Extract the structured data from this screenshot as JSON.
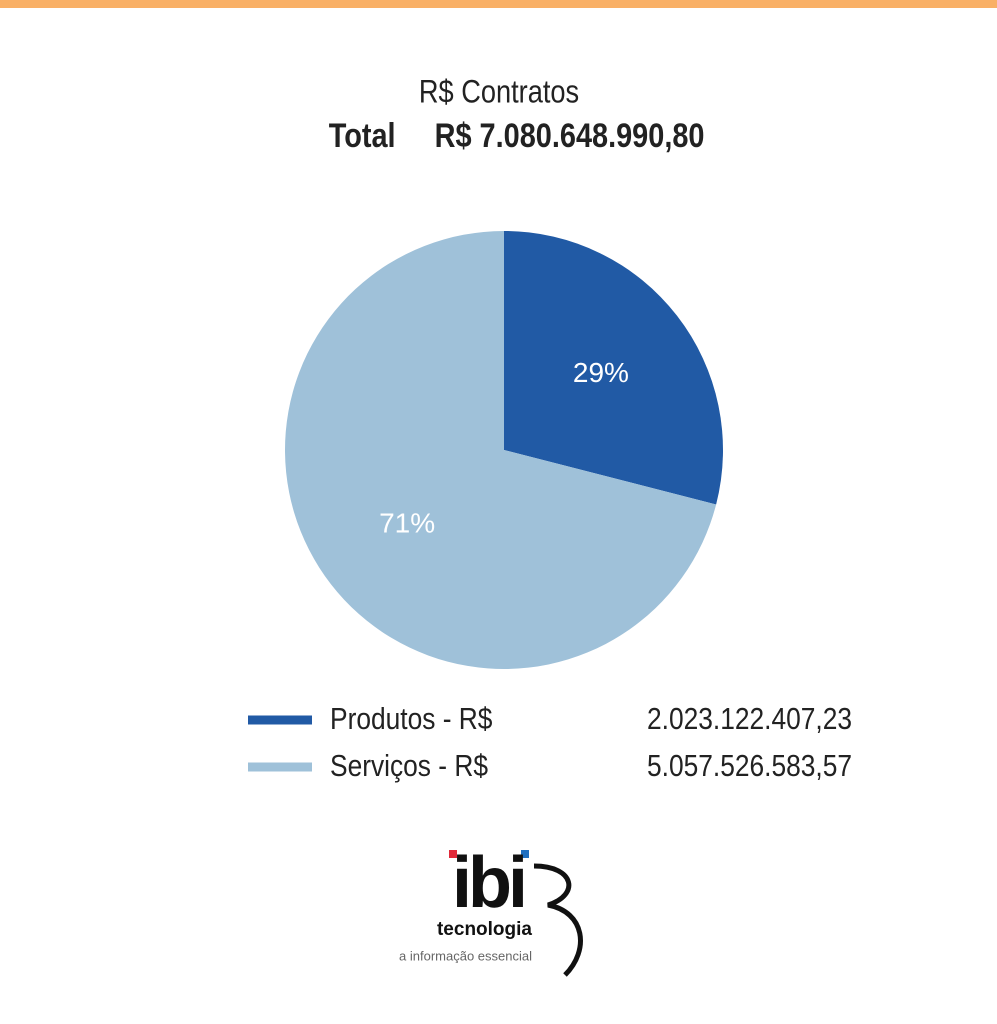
{
  "chart_data": {
    "type": "pie",
    "title": "R$ Contratos",
    "total_label": "Total",
    "total": "R$ 7.080.648.990,80",
    "categories": [
      "Produtos - R$",
      "Serviços - R$"
    ],
    "amounts": [
      "2.023.122.407,23",
      "5.057.526.583,57"
    ],
    "values": [
      29,
      71
    ],
    "value_labels": [
      "29%",
      "71%"
    ],
    "colors": [
      "#215aa5",
      "#9fc1d9"
    ]
  },
  "logo": {
    "name": "ibi",
    "line1": "tecnologia",
    "line2": "a informação essencial"
  }
}
